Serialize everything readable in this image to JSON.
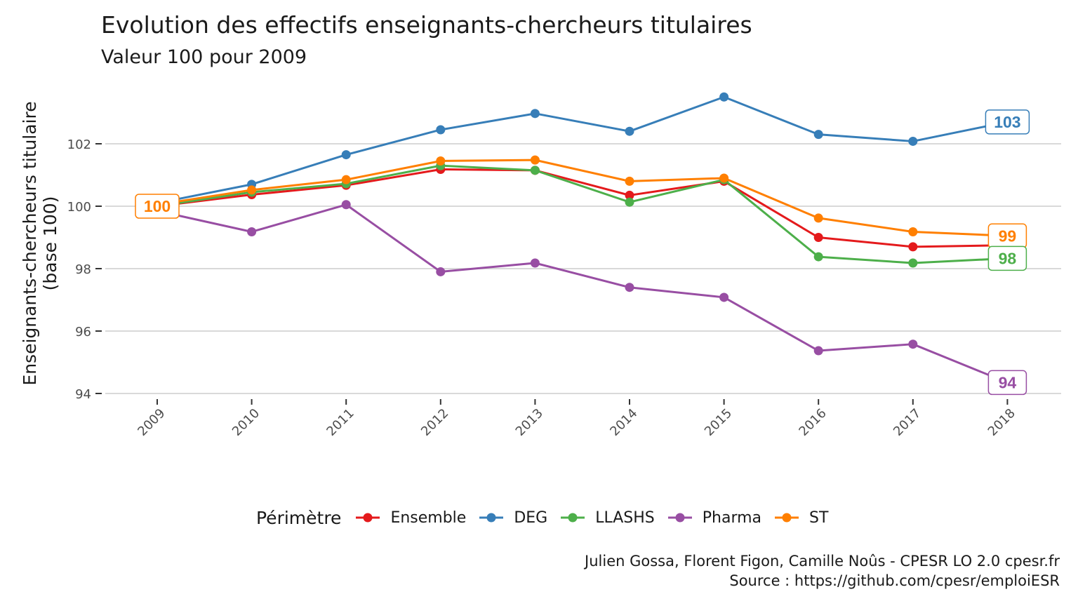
{
  "chart_data": {
    "type": "line",
    "title": "Evolution des effectifs enseignants-chercheurs titulaires",
    "subtitle": "Valeur 100 pour 2009",
    "ylabel_line1": "Enseignants-chercheurs titulaire",
    "ylabel_line2": "(base 100)",
    "xlabel": "",
    "x": [
      "2009",
      "2010",
      "2011",
      "2012",
      "2013",
      "2014",
      "2015",
      "2016",
      "2017",
      "2018"
    ],
    "ylim": [
      94,
      103.7
    ],
    "yticks": [
      94,
      96,
      98,
      100,
      102
    ],
    "ytick_labels": [
      "94",
      "96",
      "98",
      "100",
      "102"
    ],
    "grid": "horizontal",
    "legend": {
      "title": "Périmètre",
      "position": "bottom",
      "entries": [
        "Ensemble",
        "DEG",
        "LLASHS",
        "Pharma",
        "ST"
      ]
    },
    "series": [
      {
        "name": "Ensemble",
        "color": "#E41A1C",
        "values": [
          100.0,
          100.37,
          100.67,
          101.18,
          101.15,
          100.35,
          100.8,
          99.0,
          98.7,
          98.75
        ]
      },
      {
        "name": "DEG",
        "color": "#377EB8",
        "values": [
          100.1,
          100.7,
          101.65,
          102.45,
          102.97,
          102.4,
          103.5,
          102.3,
          102.08,
          102.7
        ]
      },
      {
        "name": "LLASHS",
        "color": "#4DAF4A",
        "values": [
          100.0,
          100.45,
          100.72,
          101.3,
          101.15,
          100.13,
          100.85,
          98.38,
          98.18,
          98.33
        ]
      },
      {
        "name": "Pharma",
        "color": "#984EA3",
        "values": [
          99.85,
          99.18,
          100.05,
          97.9,
          98.18,
          97.4,
          97.08,
          95.37,
          95.58,
          94.35
        ]
      },
      {
        "name": "ST",
        "color": "#FF7F00",
        "values": [
          100.05,
          100.52,
          100.85,
          101.45,
          101.48,
          100.8,
          100.9,
          99.62,
          99.18,
          99.05
        ]
      }
    ],
    "annotations": [
      {
        "text": "100",
        "x": "2009",
        "y": 100.0,
        "color": "#FF7F00"
      },
      {
        "text": "103",
        "x": "2018",
        "y": 102.7,
        "color": "#377EB8"
      },
      {
        "text": "99",
        "x": "2018",
        "y": 99.05,
        "color": "#FF7F00"
      },
      {
        "text": "98",
        "x": "2018",
        "y": 98.33,
        "color": "#4DAF4A"
      },
      {
        "text": "94",
        "x": "2018",
        "y": 94.35,
        "color": "#984EA3"
      }
    ]
  },
  "caption": {
    "line1": "Julien Gossa, Florent Figon, Camille Noûs - CPESR LO 2.0 cpesr.fr",
    "line2": "Source : https://github.com/cpesr/emploiESR"
  }
}
